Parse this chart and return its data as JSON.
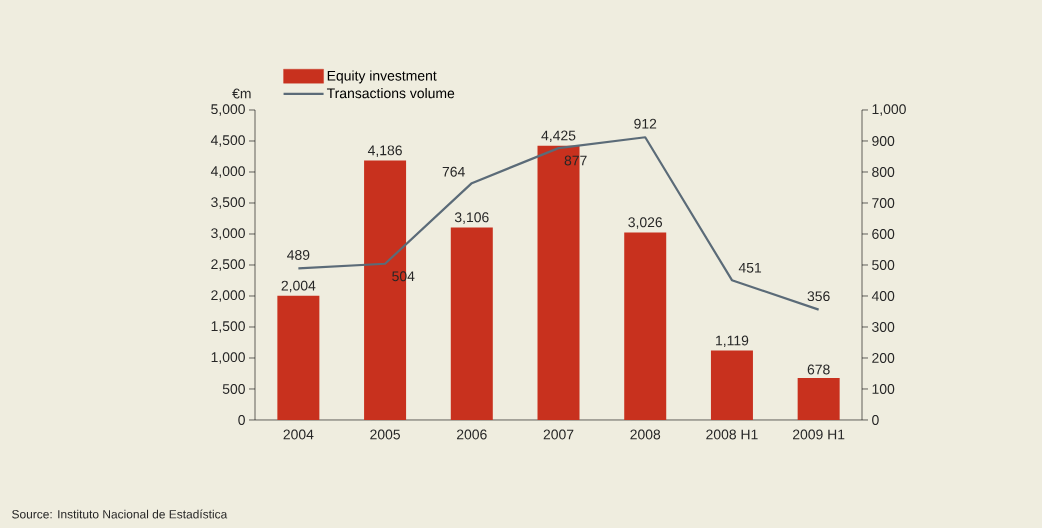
{
  "chart_data": {
    "type": "bar",
    "ylabel": "€m",
    "categories": [
      "2004",
      "2005",
      "2006",
      "2007",
      "2008",
      "2008 H1",
      "2009 H1"
    ],
    "series": [
      {
        "name": "Equity investment",
        "color": "#c8311e",
        "values": [
          2004,
          4186,
          3106,
          4425,
          3026,
          1119,
          678
        ],
        "value_labels": [
          "2,004",
          "4,186",
          "3,106",
          "4,425",
          "3,026",
          "1,119",
          "678"
        ]
      },
      {
        "name": "Transactions volume",
        "type": "line",
        "axis": "y2",
        "color": "#5b6b78",
        "values": [
          489,
          504,
          764,
          877,
          912,
          451,
          356
        ],
        "value_labels": [
          "489",
          "504",
          "764",
          "877",
          "912",
          "451",
          "356"
        ]
      }
    ],
    "ylim": [
      0,
      5000
    ],
    "yticks": [
      0,
      500,
      {
        "value": 1000,
        "label": "1,000"
      },
      {
        "value": 1500,
        "label": "1,500"
      },
      {
        "value": 2000,
        "label": "2,000"
      },
      {
        "value": 2500,
        "label": "2,500"
      },
      {
        "value": 3000,
        "label": "3,000"
      },
      {
        "value": 3500,
        "label": "3,500"
      },
      {
        "value": 4000,
        "label": "4,000"
      },
      {
        "value": 4500,
        "label": "4,500"
      },
      {
        "value": 5000,
        "label": "5,000"
      }
    ],
    "y2lim": [
      0,
      1000
    ],
    "y2ticks": [
      0,
      100,
      200,
      300,
      400,
      500,
      600,
      700,
      800,
      900,
      {
        "value": 1000,
        "label": "1,000"
      }
    ],
    "legend": "top left",
    "grid": false,
    "annotations": [
      "Source: Instituto Nacional de Estadística"
    ]
  }
}
